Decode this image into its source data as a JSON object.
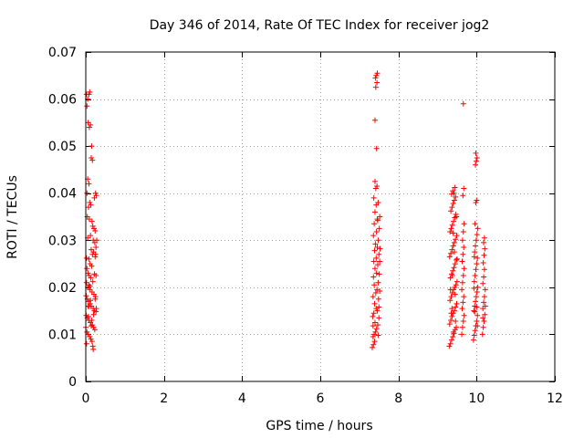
{
  "chart_data": {
    "type": "scatter",
    "title": "Day 346 of 2014, Rate Of TEC Index for receiver jog2",
    "xlabel": "GPS time / hours",
    "ylabel": "ROTI / TECUs",
    "xlim": [
      0,
      12
    ],
    "ylim": [
      0,
      0.07
    ],
    "xticks": [
      0,
      2,
      4,
      6,
      8,
      10,
      12
    ],
    "xtick_labels": [
      "0",
      "2",
      "4",
      "6",
      "8",
      "10",
      "12"
    ],
    "yticks": [
      0,
      0.01,
      0.02,
      0.03,
      0.04,
      0.05,
      0.06,
      0.07
    ],
    "ytick_labels": [
      "0",
      "0.01",
      "0.02",
      "0.03",
      "0.04",
      "0.05",
      "0.06",
      "0.07"
    ],
    "grid": true,
    "marker": "+",
    "color": "#ff0000",
    "tick_color": "#000000",
    "series": [
      {
        "name": "ROTI",
        "points": [
          [
            0.02,
            0.061
          ],
          [
            0.05,
            0.06
          ],
          [
            0.08,
            0.061
          ],
          [
            0.1,
            0.0615
          ],
          [
            0.03,
            0.0585
          ],
          [
            0.06,
            0.055
          ],
          [
            0.09,
            0.054
          ],
          [
            0.12,
            0.0545
          ],
          [
            0.15,
            0.05
          ],
          [
            0.14,
            0.0475
          ],
          [
            0.17,
            0.047
          ],
          [
            0.05,
            0.043
          ],
          [
            0.08,
            0.042
          ],
          [
            0.03,
            0.04
          ],
          [
            0.25,
            0.04
          ],
          [
            0.22,
            0.039
          ],
          [
            0.27,
            0.0395
          ],
          [
            0.1,
            0.038
          ],
          [
            0.07,
            0.037
          ],
          [
            0.13,
            0.0375
          ],
          [
            0.04,
            0.035
          ],
          [
            0.09,
            0.0345
          ],
          [
            0.16,
            0.034
          ],
          [
            0.18,
            0.033
          ],
          [
            0.21,
            0.0325
          ],
          [
            0.24,
            0.032
          ],
          [
            0.12,
            0.031
          ],
          [
            0.19,
            0.03
          ],
          [
            0.23,
            0.0295
          ],
          [
            0.26,
            0.0285
          ],
          [
            0.14,
            0.028
          ],
          [
            0.2,
            0.0275
          ],
          [
            0.17,
            0.027
          ],
          [
            0.24,
            0.0265
          ],
          [
            0.08,
            0.026
          ],
          [
            0.11,
            0.025
          ],
          [
            0.15,
            0.0245
          ],
          [
            0.03,
            0.024
          ],
          [
            0.06,
            0.023
          ],
          [
            0.09,
            0.0225
          ],
          [
            0.13,
            0.022
          ],
          [
            0.02,
            0.021
          ],
          [
            0.05,
            0.02
          ],
          [
            0.1,
            0.0195
          ],
          [
            0.16,
            0.019
          ],
          [
            0.21,
            0.0185
          ],
          [
            0.25,
            0.018
          ],
          [
            0.04,
            0.0175
          ],
          [
            0.07,
            0.017
          ],
          [
            0.11,
            0.0165
          ],
          [
            0.14,
            0.016
          ],
          [
            0.19,
            0.0155
          ],
          [
            0.22,
            0.015
          ],
          [
            0.26,
            0.0148
          ],
          [
            0.01,
            0.014
          ],
          [
            0.04,
            0.0135
          ],
          [
            0.08,
            0.013
          ],
          [
            0.12,
            0.0125
          ],
          [
            0.17,
            0.012
          ],
          [
            0.2,
            0.0115
          ],
          [
            0.23,
            0.011
          ],
          [
            0.03,
            0.0105
          ],
          [
            0.06,
            0.01
          ],
          [
            0.1,
            0.0095
          ],
          [
            0.13,
            0.009
          ],
          [
            0.16,
            0.0085
          ],
          [
            0.02,
            0.008
          ],
          [
            0.18,
            0.0075
          ],
          [
            0.19,
            0.0068
          ],
          [
            0.0,
            0.0115
          ],
          [
            0.01,
            0.0182
          ],
          [
            0.02,
            0.0262
          ],
          [
            0.05,
            0.0305
          ],
          [
            0.07,
            0.0138
          ],
          [
            0.09,
            0.0159
          ],
          [
            0.11,
            0.0202
          ],
          [
            0.12,
            0.0172
          ],
          [
            0.14,
            0.0118
          ],
          [
            0.18,
            0.0212
          ],
          [
            0.2,
            0.0142
          ],
          [
            0.22,
            0.0228
          ],
          [
            0.24,
            0.0175
          ],
          [
            0.26,
            0.0225
          ],
          [
            0.27,
            0.0155
          ],
          [
            0.28,
            0.03
          ],
          [
            0.25,
            0.027
          ],
          [
            0.06,
            0.016
          ],
          [
            0.15,
            0.013
          ],
          [
            0.08,
            0.0205
          ],
          [
            7.33,
            0.0072
          ],
          [
            7.36,
            0.0078
          ],
          [
            7.38,
            0.01
          ],
          [
            7.41,
            0.0105
          ],
          [
            7.44,
            0.0112
          ],
          [
            7.35,
            0.0118
          ],
          [
            7.4,
            0.0125
          ],
          [
            7.47,
            0.012
          ],
          [
            7.5,
            0.0135
          ],
          [
            7.37,
            0.0145
          ],
          [
            7.43,
            0.0155
          ],
          [
            7.46,
            0.015
          ],
          [
            7.39,
            0.0165
          ],
          [
            7.49,
            0.0175
          ],
          [
            7.35,
            0.018
          ],
          [
            7.42,
            0.0188
          ],
          [
            7.45,
            0.0195
          ],
          [
            7.52,
            0.0192
          ],
          [
            7.38,
            0.0205
          ],
          [
            7.48,
            0.021
          ],
          [
            7.36,
            0.0222
          ],
          [
            7.44,
            0.023
          ],
          [
            7.51,
            0.0228
          ],
          [
            7.4,
            0.024
          ],
          [
            7.47,
            0.0248
          ],
          [
            7.37,
            0.0255
          ],
          [
            7.43,
            0.0262
          ],
          [
            7.5,
            0.027
          ],
          [
            7.39,
            0.0278
          ],
          [
            7.46,
            0.0285
          ],
          [
            7.53,
            0.0282
          ],
          [
            7.41,
            0.0292
          ],
          [
            7.48,
            0.03
          ],
          [
            7.36,
            0.031
          ],
          [
            7.44,
            0.0318
          ],
          [
            7.51,
            0.0325
          ],
          [
            7.38,
            0.0335
          ],
          [
            7.46,
            0.0345
          ],
          [
            7.52,
            0.035
          ],
          [
            7.4,
            0.036
          ],
          [
            7.43,
            0.0375
          ],
          [
            7.48,
            0.038
          ],
          [
            7.37,
            0.039
          ],
          [
            7.42,
            0.041
          ],
          [
            7.45,
            0.0415
          ],
          [
            7.4,
            0.0425
          ],
          [
            7.44,
            0.0495
          ],
          [
            7.4,
            0.0555
          ],
          [
            7.42,
            0.0625
          ],
          [
            7.45,
            0.0635
          ],
          [
            7.41,
            0.0645
          ],
          [
            7.43,
            0.065
          ],
          [
            7.46,
            0.0655
          ],
          [
            7.48,
            0.0098
          ],
          [
            7.34,
            0.0138
          ],
          [
            7.5,
            0.0158
          ],
          [
            7.47,
            0.0342
          ],
          [
            7.35,
            0.0095
          ],
          [
            7.52,
            0.0255
          ],
          [
            7.39,
            0.0085
          ],
          [
            9.3,
            0.0075
          ],
          [
            9.33,
            0.008
          ],
          [
            9.36,
            0.0088
          ],
          [
            9.39,
            0.0095
          ],
          [
            9.42,
            0.0102
          ],
          [
            9.45,
            0.011
          ],
          [
            9.48,
            0.0115
          ],
          [
            9.31,
            0.0122
          ],
          [
            9.34,
            0.013
          ],
          [
            9.37,
            0.0138
          ],
          [
            9.4,
            0.0145
          ],
          [
            9.43,
            0.015
          ],
          [
            9.46,
            0.0158
          ],
          [
            9.49,
            0.0165
          ],
          [
            9.32,
            0.0172
          ],
          [
            9.35,
            0.018
          ],
          [
            9.38,
            0.0188
          ],
          [
            9.41,
            0.0195
          ],
          [
            9.44,
            0.02
          ],
          [
            9.47,
            0.0205
          ],
          [
            9.5,
            0.0212
          ],
          [
            9.33,
            0.022
          ],
          [
            9.36,
            0.0228
          ],
          [
            9.39,
            0.0235
          ],
          [
            9.42,
            0.0242
          ],
          [
            9.45,
            0.025
          ],
          [
            9.48,
            0.0258
          ],
          [
            9.31,
            0.0265
          ],
          [
            9.34,
            0.0272
          ],
          [
            9.37,
            0.028
          ],
          [
            9.4,
            0.0288
          ],
          [
            9.43,
            0.0295
          ],
          [
            9.46,
            0.0302
          ],
          [
            9.49,
            0.031
          ],
          [
            9.32,
            0.0318
          ],
          [
            9.35,
            0.0325
          ],
          [
            9.38,
            0.0332
          ],
          [
            9.41,
            0.034
          ],
          [
            9.44,
            0.0348
          ],
          [
            9.47,
            0.0355
          ],
          [
            9.34,
            0.0362
          ],
          [
            9.37,
            0.037
          ],
          [
            9.4,
            0.0378
          ],
          [
            9.43,
            0.0385
          ],
          [
            9.46,
            0.0392
          ],
          [
            9.36,
            0.0398
          ],
          [
            9.42,
            0.04
          ],
          [
            9.39,
            0.0405
          ],
          [
            9.44,
            0.0412
          ],
          [
            9.35,
            0.0145
          ],
          [
            9.45,
            0.0185
          ],
          [
            9.38,
            0.0225
          ],
          [
            9.5,
            0.026
          ],
          [
            9.33,
            0.0195
          ],
          [
            9.41,
            0.0105
          ],
          [
            9.48,
            0.035
          ],
          [
            9.37,
            0.0155
          ],
          [
            9.43,
            0.0275
          ],
          [
            9.46,
            0.0128
          ],
          [
            9.4,
            0.0315
          ],
          [
            9.62,
            0.01
          ],
          [
            9.64,
            0.0115
          ],
          [
            9.66,
            0.0128
          ],
          [
            9.68,
            0.014
          ],
          [
            9.63,
            0.0155
          ],
          [
            9.65,
            0.0168
          ],
          [
            9.67,
            0.018
          ],
          [
            9.62,
            0.0195
          ],
          [
            9.64,
            0.021
          ],
          [
            9.66,
            0.0225
          ],
          [
            9.68,
            0.024
          ],
          [
            9.63,
            0.0255
          ],
          [
            9.65,
            0.027
          ],
          [
            9.67,
            0.0285
          ],
          [
            9.64,
            0.03
          ],
          [
            9.66,
            0.0318
          ],
          [
            9.68,
            0.0335
          ],
          [
            9.65,
            0.0395
          ],
          [
            9.67,
            0.041
          ],
          [
            9.66,
            0.059
          ],
          [
            9.92,
            0.0088
          ],
          [
            9.94,
            0.0098
          ],
          [
            9.96,
            0.0108
          ],
          [
            9.98,
            0.0118
          ],
          [
            10.0,
            0.0128
          ],
          [
            10.02,
            0.014
          ],
          [
            9.93,
            0.015
          ],
          [
            9.95,
            0.016
          ],
          [
            9.97,
            0.017
          ],
          [
            9.99,
            0.018
          ],
          [
            10.01,
            0.019
          ],
          [
            10.03,
            0.02
          ],
          [
            9.94,
            0.0212
          ],
          [
            9.96,
            0.0225
          ],
          [
            9.98,
            0.0238
          ],
          [
            10.0,
            0.025
          ],
          [
            10.02,
            0.0262
          ],
          [
            9.95,
            0.0275
          ],
          [
            9.97,
            0.0288
          ],
          [
            9.99,
            0.03
          ],
          [
            10.01,
            0.0312
          ],
          [
            10.03,
            0.0325
          ],
          [
            9.96,
            0.0335
          ],
          [
            9.98,
            0.038
          ],
          [
            10.0,
            0.0385
          ],
          [
            9.97,
            0.046
          ],
          [
            9.99,
            0.0468
          ],
          [
            10.01,
            0.0475
          ],
          [
            9.98,
            0.0485
          ],
          [
            9.95,
            0.0148
          ],
          [
            10.02,
            0.0118
          ],
          [
            9.93,
            0.0198
          ],
          [
            10.0,
            0.0158
          ],
          [
            9.94,
            0.0265
          ],
          [
            10.15,
            0.01
          ],
          [
            10.17,
            0.0115
          ],
          [
            10.19,
            0.0128
          ],
          [
            10.21,
            0.0142
          ],
          [
            10.16,
            0.0155
          ],
          [
            10.18,
            0.0168
          ],
          [
            10.2,
            0.018
          ],
          [
            10.22,
            0.0195
          ],
          [
            10.16,
            0.0208
          ],
          [
            10.18,
            0.0222
          ],
          [
            10.2,
            0.0238
          ],
          [
            10.17,
            0.0252
          ],
          [
            10.19,
            0.0268
          ],
          [
            10.21,
            0.0282
          ],
          [
            10.18,
            0.0295
          ],
          [
            10.2,
            0.0305
          ],
          [
            10.16,
            0.0135
          ],
          [
            10.22,
            0.016
          ]
        ]
      }
    ]
  }
}
